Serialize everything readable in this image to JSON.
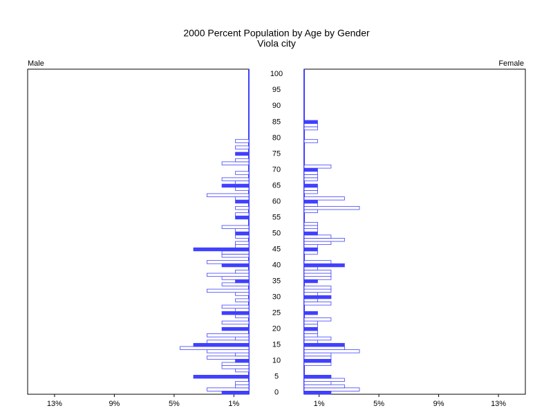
{
  "chart_data": {
    "type": "pyramid",
    "title": "2000 Percent Population by Age by Gender",
    "subtitle": "Viola city",
    "categories": [
      "0",
      null,
      null,
      null,
      null,
      "5",
      null,
      null,
      null,
      null,
      "10",
      null,
      null,
      null,
      null,
      "15",
      null,
      null,
      null,
      null,
      "20",
      null,
      null,
      null,
      null,
      "25",
      null,
      null,
      null,
      null,
      "30",
      null,
      null,
      null,
      null,
      "35",
      null,
      null,
      null,
      null,
      "40",
      null,
      null,
      null,
      null,
      "45",
      null,
      null,
      null,
      null,
      "50",
      null,
      null,
      null,
      null,
      "55",
      null,
      null,
      null,
      null,
      "60",
      null,
      null,
      null,
      null,
      "65",
      null,
      null,
      null,
      null,
      "70",
      null,
      null,
      null,
      null,
      "75",
      null,
      null,
      null,
      null,
      "80",
      null,
      null,
      null,
      null,
      "85",
      null,
      null,
      null,
      null,
      "90",
      null,
      null,
      null,
      null,
      "95",
      null,
      null,
      null,
      null,
      "100"
    ],
    "series": [
      {
        "name": "Male",
        "color": "#4040ff",
        "values": [
          1.8,
          2.8,
          0.9,
          0.9,
          0,
          3.7,
          0,
          0.9,
          1.8,
          1.8,
          0.9,
          2.8,
          0.9,
          2.8,
          4.6,
          3.7,
          2.8,
          0.9,
          2.8,
          0,
          1.8,
          0,
          1.8,
          0,
          0.9,
          1.8,
          0.9,
          1.8,
          0,
          0.9,
          0,
          0.9,
          2.8,
          0,
          1.8,
          0.9,
          1.8,
          2.8,
          0.9,
          0,
          1.8,
          2.8,
          0,
          1.8,
          1.8,
          3.7,
          0.9,
          0.9,
          0,
          0.9,
          0.9,
          0.9,
          1.8,
          0,
          0,
          0.9,
          0.9,
          0,
          0.9,
          0,
          0.9,
          0.9,
          2.8,
          0,
          0.9,
          1.8,
          0.9,
          1.8,
          0,
          0.9,
          0,
          0,
          1.8,
          0.9,
          0,
          0.9,
          0,
          0.9,
          0,
          0.9,
          0,
          0,
          0,
          0,
          0,
          0,
          0,
          0,
          0,
          0,
          0,
          0,
          0,
          0,
          0,
          0,
          0,
          0,
          0,
          0,
          0
        ]
      },
      {
        "name": "Female",
        "color": "#4040ff",
        "values": [
          1.8,
          3.7,
          2.7,
          1.8,
          2.7,
          1.8,
          0,
          0,
          0,
          1.8,
          1.8,
          1.8,
          1.8,
          3.7,
          2.7,
          2.7,
          0.9,
          1.8,
          0.9,
          0.9,
          0.9,
          0.9,
          0.9,
          1.8,
          0,
          0.9,
          0,
          0,
          1.8,
          0.9,
          1.8,
          0.9,
          1.8,
          1.8,
          0,
          0.9,
          1.8,
          1.8,
          1.8,
          0.9,
          2.7,
          1.8,
          0,
          0,
          0.9,
          0.9,
          0.9,
          1.8,
          2.7,
          1.8,
          0.9,
          0.9,
          0.9,
          0.9,
          0,
          0,
          0,
          0.9,
          3.7,
          0.9,
          0.9,
          2.7,
          0,
          0.9,
          0.9,
          0.9,
          0,
          0.9,
          0.9,
          0.9,
          0.9,
          1.8,
          0,
          0,
          0,
          0,
          0,
          0,
          0,
          0.9,
          0,
          0,
          0,
          0.9,
          0.9,
          0.9,
          0,
          0,
          0,
          0,
          0,
          0,
          0,
          0,
          0,
          0,
          0,
          0,
          0,
          0,
          0
        ]
      }
    ],
    "xlim": [
      0,
      14.8
    ],
    "xticks": [
      {
        "value": 13,
        "label": "13%"
      },
      {
        "value": 9,
        "label": "9%"
      },
      {
        "value": 5,
        "label": "5%"
      },
      {
        "value": 1,
        "label": "1%"
      }
    ]
  }
}
